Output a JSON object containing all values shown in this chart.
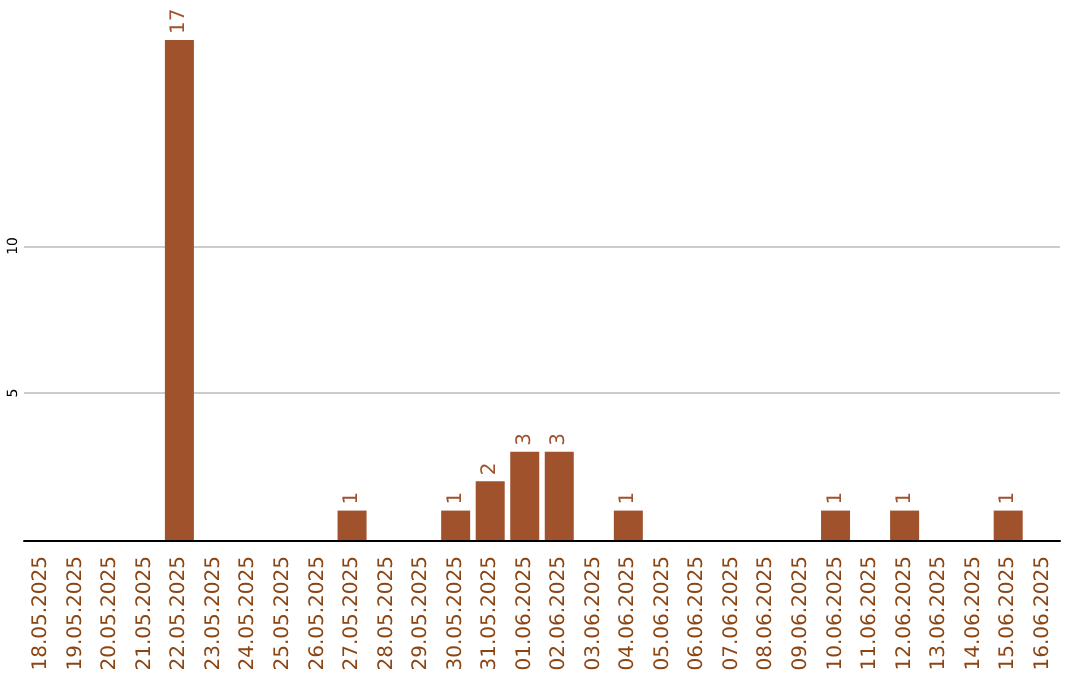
{
  "chart_data": {
    "type": "bar",
    "categories": [
      "18.05.2025",
      "19.05.2025",
      "20.05.2025",
      "21.05.2025",
      "22.05.2025",
      "23.05.2025",
      "24.05.2025",
      "25.05.2025",
      "26.05.2025",
      "27.05.2025",
      "28.05.2025",
      "29.05.2025",
      "30.05.2025",
      "31.05.2025",
      "01.06.2025",
      "02.06.2025",
      "03.06.2025",
      "04.06.2025",
      "05.06.2025",
      "06.06.2025",
      "07.06.2025",
      "08.06.2025",
      "09.06.2025",
      "10.06.2025",
      "11.06.2025",
      "12.06.2025",
      "13.06.2025",
      "14.06.2025",
      "15.06.2025",
      "16.06.2025"
    ],
    "values": [
      0,
      0,
      0,
      0,
      17,
      0,
      0,
      0,
      0,
      1,
      0,
      0,
      1,
      2,
      3,
      3,
      0,
      1,
      0,
      0,
      0,
      0,
      0,
      1,
      0,
      1,
      0,
      0,
      1,
      0
    ],
    "value_labels": [
      null,
      null,
      null,
      null,
      "17",
      null,
      null,
      null,
      null,
      "1",
      null,
      null,
      "1",
      "2",
      "3",
      "3",
      null,
      "1",
      null,
      null,
      null,
      null,
      null,
      "1",
      null,
      "1",
      null,
      null,
      "1",
      null
    ],
    "color": "#a0522d",
    "ylim": [
      0,
      17
    ],
    "yticks": [
      5,
      10
    ],
    "grid": "y"
  }
}
